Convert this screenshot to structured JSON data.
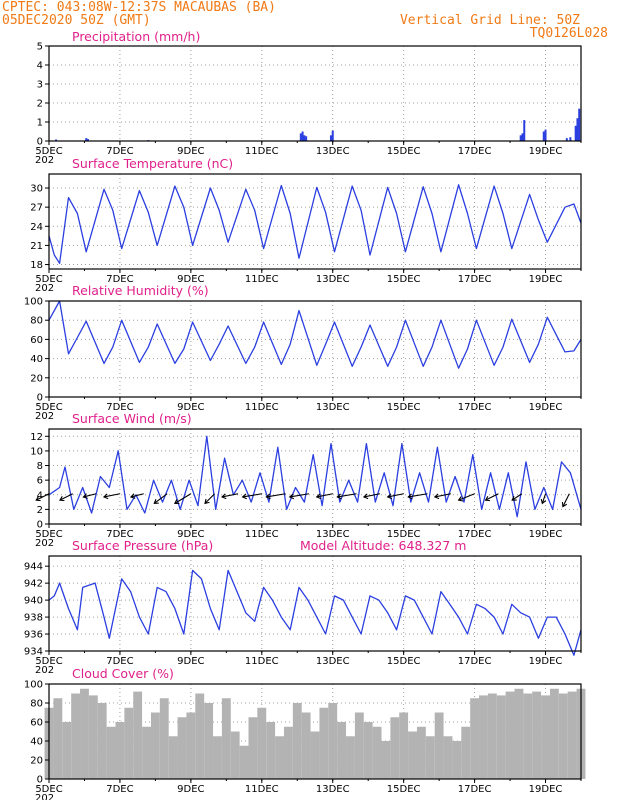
{
  "header": {
    "line1_left": "CPTEC:   043:08W-12:37S   MACAUBAS (BA)",
    "line2_left": "05DEC2020 50Z (GMT)",
    "line1_right": "Vertical Grid Line: 50Z",
    "line2_right": "TQ0126L028"
  },
  "colors": {
    "line": "#2b3fe0",
    "title": "#e0208a",
    "header": "#f07a16",
    "cloud": "#b3b3b3",
    "grid": "#a0a0a0"
  },
  "x_axis": {
    "day_start": 5,
    "day_end": 20,
    "tick_labels": [
      "5DEC",
      "7DEC",
      "9DEC",
      "11DEC",
      "13DEC",
      "15DEC",
      "17DEC",
      "19DEC"
    ],
    "tick_days": [
      5,
      7,
      9,
      11,
      13,
      15,
      17,
      19
    ],
    "under_label": "202"
  },
  "chart_data": [
    {
      "type": "bar",
      "title": "Precipitation  (mm/h)",
      "ylim": [
        0,
        5
      ],
      "yticks": [
        0,
        1,
        2,
        3,
        4,
        5
      ],
      "x": [
        5.2,
        6.05,
        6.1,
        7.8,
        12.1,
        12.15,
        12.2,
        12.25,
        12.95,
        13.0,
        18.3,
        18.35,
        18.4,
        18.95,
        19.0,
        19.6,
        19.7,
        19.85,
        19.9,
        19.95
      ],
      "values": [
        0.08,
        0.15,
        0.1,
        0.05,
        0.4,
        0.5,
        0.3,
        0.25,
        0.3,
        0.55,
        0.3,
        0.4,
        1.1,
        0.5,
        0.6,
        0.15,
        0.2,
        0.8,
        1.2,
        1.7
      ]
    },
    {
      "type": "line",
      "title": "Surface Temperature  (nC)",
      "ylim": [
        17.3,
        32.2
      ],
      "yticks": [
        18,
        21,
        24,
        27,
        30
      ],
      "series": [
        {
          "name": "Surface Temperature",
          "x": [
            5.0,
            5.15,
            5.3,
            5.55,
            5.8,
            6.05,
            6.55,
            6.8,
            7.05,
            7.55,
            7.8,
            8.05,
            8.55,
            8.8,
            9.05,
            9.55,
            9.8,
            10.05,
            10.55,
            10.8,
            11.05,
            11.55,
            11.8,
            12.05,
            12.55,
            12.8,
            13.05,
            13.55,
            13.8,
            14.05,
            14.55,
            14.8,
            15.05,
            15.55,
            15.8,
            16.05,
            16.55,
            16.8,
            17.05,
            17.55,
            17.8,
            18.05,
            18.55,
            18.8,
            19.05,
            19.55,
            19.8,
            20.0
          ],
          "values": [
            22.5,
            19.5,
            18.2,
            28.5,
            26.0,
            20.0,
            29.8,
            26.5,
            20.5,
            29.6,
            26.2,
            21.0,
            30.3,
            27.0,
            21.0,
            30.0,
            26.5,
            21.5,
            29.8,
            26.5,
            20.5,
            30.4,
            26.0,
            19.0,
            30.1,
            26.2,
            20.0,
            30.3,
            26.5,
            19.5,
            30.1,
            26.0,
            20.0,
            30.2,
            26.0,
            20.0,
            30.5,
            26.0,
            20.5,
            30.3,
            26.0,
            20.5,
            29.0,
            25.0,
            21.5,
            27.0,
            27.5,
            24.5
          ]
        }
      ]
    },
    {
      "type": "line",
      "title": "Relative Humidity  (%)",
      "ylim": [
        0,
        100
      ],
      "yticks": [
        0,
        20,
        40,
        60,
        80,
        100
      ],
      "series": [
        {
          "name": "Relative Humidity",
          "x": [
            5.0,
            5.3,
            5.55,
            5.8,
            6.05,
            6.55,
            6.8,
            7.05,
            7.55,
            7.8,
            8.05,
            8.55,
            8.8,
            9.05,
            9.55,
            9.8,
            10.05,
            10.55,
            10.8,
            11.05,
            11.55,
            11.8,
            12.05,
            12.55,
            12.8,
            13.05,
            13.55,
            13.8,
            14.05,
            14.55,
            14.8,
            15.05,
            15.55,
            15.8,
            16.05,
            16.55,
            16.8,
            17.05,
            17.55,
            17.8,
            18.05,
            18.55,
            18.8,
            19.05,
            19.55,
            19.8,
            20.0
          ],
          "values": [
            80,
            100,
            45,
            62,
            79,
            35,
            52,
            80,
            36,
            52,
            76,
            35,
            50,
            78,
            38,
            55,
            74,
            35,
            52,
            78,
            34,
            55,
            90,
            33,
            55,
            78,
            32,
            52,
            75,
            32,
            52,
            80,
            32,
            52,
            80,
            30,
            50,
            80,
            33,
            52,
            81,
            36,
            55,
            83,
            47,
            48,
            60
          ]
        }
      ]
    },
    {
      "type": "line",
      "title": "Surface Wind  (m/s)",
      "ylim": [
        0,
        13
      ],
      "yticks": [
        0,
        2,
        4,
        6,
        8,
        10,
        12
      ],
      "series": [
        {
          "name": "Wind speed",
          "x": [
            5.0,
            5.3,
            5.45,
            5.7,
            5.95,
            6.2,
            6.45,
            6.7,
            6.95,
            7.2,
            7.45,
            7.7,
            7.95,
            8.2,
            8.45,
            8.7,
            8.95,
            9.2,
            9.45,
            9.7,
            9.95,
            10.2,
            10.45,
            10.7,
            10.95,
            11.2,
            11.45,
            11.7,
            11.95,
            12.2,
            12.45,
            12.7,
            12.95,
            13.2,
            13.45,
            13.7,
            13.95,
            14.2,
            14.45,
            14.7,
            14.95,
            15.2,
            15.45,
            15.7,
            15.95,
            16.2,
            16.45,
            16.7,
            16.95,
            17.2,
            17.45,
            17.7,
            17.95,
            18.2,
            18.45,
            18.7,
            18.95,
            19.2,
            19.45,
            19.7,
            20.0
          ],
          "values": [
            4,
            5,
            7.8,
            2,
            5,
            1.5,
            6.5,
            5,
            10,
            2,
            4,
            1.5,
            6,
            3,
            6,
            2,
            6,
            2.5,
            12,
            2,
            9,
            4,
            6,
            3,
            7,
            3,
            10.5,
            2,
            5,
            3,
            9.5,
            2.5,
            11,
            3,
            6,
            3,
            11,
            3,
            7,
            2.5,
            11,
            3,
            7,
            3,
            10.5,
            3,
            6.5,
            3,
            9.5,
            2,
            7,
            2,
            7,
            1,
            8.5,
            2,
            5,
            2,
            8.5,
            7,
            2
          ]
        }
      ],
      "arrows_from_days": [
        5.0,
        5.67,
        6.33,
        7.0,
        7.67,
        8.33,
        9.0,
        9.67,
        10.33,
        11.0,
        11.67,
        12.33,
        13.0,
        13.67,
        14.33,
        15.0,
        15.67,
        16.33,
        17.0,
        17.67,
        18.33,
        19.0,
        19.67
      ],
      "arrow_u": [
        -4,
        -4,
        -4,
        -5,
        -4,
        -4,
        -5,
        -3,
        -5,
        -6,
        -6,
        -6,
        -5,
        -6,
        -5,
        -5,
        -6,
        -5,
        -5,
        -4,
        -3,
        -1,
        -2
      ],
      "arrow_v": [
        -2,
        -2,
        -1,
        -1,
        -1,
        -3,
        -3,
        -3,
        -1,
        -1,
        -1,
        -1,
        -1,
        -1,
        -1,
        -1,
        -1,
        -1,
        -2,
        -2,
        -2,
        -3,
        -4
      ]
    },
    {
      "type": "line",
      "title": "Surface Pressure  (hPa)",
      "annotation": "Model Altitude: 648.327  m",
      "ylim": [
        934,
        945.2
      ],
      "yticks": [
        934,
        936,
        938,
        940,
        942,
        944
      ],
      "series": [
        {
          "name": "Surface Pressure",
          "x": [
            5.0,
            5.15,
            5.3,
            5.55,
            5.8,
            5.95,
            6.3,
            6.55,
            6.7,
            7.05,
            7.3,
            7.55,
            7.8,
            8.05,
            8.3,
            8.55,
            8.8,
            9.05,
            9.3,
            9.55,
            9.8,
            10.05,
            10.3,
            10.55,
            10.8,
            11.05,
            11.3,
            11.55,
            11.8,
            12.05,
            12.3,
            12.55,
            12.8,
            13.05,
            13.3,
            13.55,
            13.8,
            14.05,
            14.3,
            14.55,
            14.8,
            15.05,
            15.3,
            15.55,
            15.8,
            16.05,
            16.3,
            16.55,
            16.8,
            17.05,
            17.3,
            17.55,
            17.8,
            18.05,
            18.3,
            18.55,
            18.8,
            19.05,
            19.3,
            19.55,
            19.8,
            20.0
          ],
          "values": [
            940,
            940.5,
            942,
            939,
            936.5,
            941.5,
            942,
            938,
            935.5,
            942.5,
            941,
            938,
            936,
            941.5,
            941,
            939,
            936,
            943.5,
            942.5,
            939,
            936.5,
            943.5,
            941,
            938.5,
            937.5,
            941.5,
            940,
            938,
            936.5,
            941.5,
            940,
            938,
            936,
            940.5,
            940,
            938,
            936,
            940.5,
            940,
            938.5,
            936.5,
            940.5,
            940,
            938,
            936,
            941,
            939.5,
            938,
            936,
            939.5,
            939,
            938,
            936,
            939.5,
            938.5,
            938,
            935.5,
            938,
            938,
            936,
            933.5,
            936.5
          ]
        }
      ]
    },
    {
      "type": "bar",
      "title": "Cloud Cover  (%)",
      "ylim": [
        0,
        100
      ],
      "yticks": [
        0,
        20,
        40,
        60,
        80,
        100
      ],
      "x": [
        5.0,
        5.25,
        5.5,
        5.75,
        6.0,
        6.25,
        6.5,
        6.75,
        7.0,
        7.25,
        7.5,
        7.75,
        8.0,
        8.25,
        8.5,
        8.75,
        9.0,
        9.25,
        9.5,
        9.75,
        10.0,
        10.25,
        10.5,
        10.75,
        11.0,
        11.25,
        11.5,
        11.75,
        12.0,
        12.25,
        12.5,
        12.75,
        13.0,
        13.25,
        13.5,
        13.75,
        14.0,
        14.25,
        14.5,
        14.75,
        15.0,
        15.25,
        15.5,
        15.75,
        16.0,
        16.25,
        16.5,
        16.75,
        17.0,
        17.25,
        17.5,
        17.75,
        18.0,
        18.25,
        18.5,
        18.75,
        19.0,
        19.25,
        19.5,
        19.75,
        20.0
      ],
      "values": [
        75,
        85,
        60,
        90,
        95,
        88,
        80,
        55,
        60,
        75,
        92,
        55,
        70,
        85,
        45,
        65,
        70,
        90,
        80,
        45,
        85,
        50,
        35,
        65,
        75,
        60,
        45,
        55,
        80,
        70,
        50,
        75,
        80,
        60,
        45,
        70,
        60,
        55,
        40,
        65,
        70,
        50,
        55,
        45,
        70,
        45,
        40,
        55,
        85,
        88,
        90,
        88,
        92,
        95,
        90,
        92,
        88,
        95,
        90,
        92,
        95
      ]
    }
  ]
}
